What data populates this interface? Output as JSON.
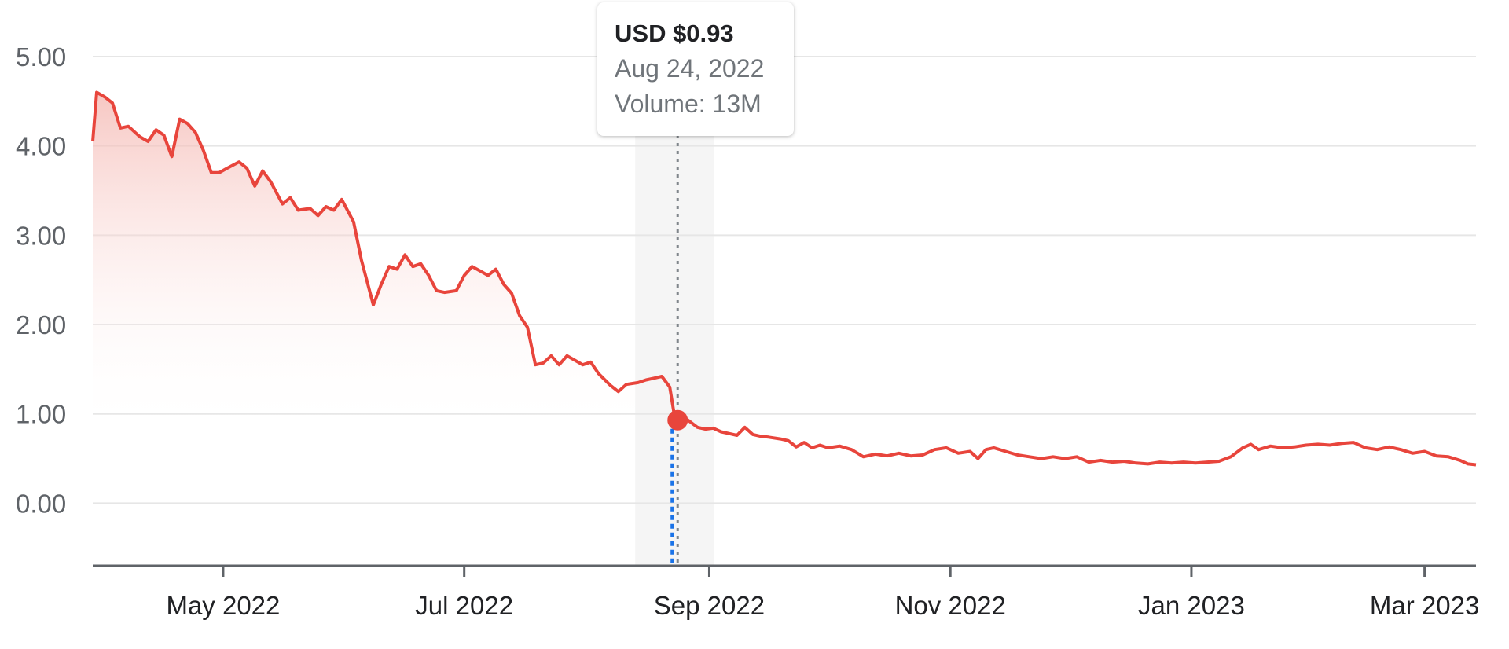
{
  "tooltip": {
    "price": "USD $0.93",
    "date": "Aug 24, 2022",
    "volume_label": "Volume:",
    "volume_value": "13M"
  },
  "colors": {
    "line": "#e8453c",
    "fill_top": "#f4b4ae",
    "grid": "#e6e6e6",
    "axis": "#5f6368",
    "highlight_band": "#f5f5f5",
    "hover_line": "#80868b",
    "volume_marker": "#1a73e8"
  },
  "chart_data": {
    "type": "area",
    "y_ticks": [
      "5.00",
      "4.00",
      "3.00",
      "2.00",
      "1.00",
      "0.00"
    ],
    "x_ticks": [
      "May 2022",
      "Jul 2022",
      "Sep 2022",
      "Nov 2022",
      "Jan 2023",
      "Mar 2023"
    ],
    "ylim": [
      -0.7,
      5.0
    ],
    "xlim": [
      "2022-03-29",
      "2023-03-14"
    ],
    "grid": true,
    "highlight": {
      "date": "2022-08-24",
      "value": 0.93
    },
    "series": [
      {
        "points": [
          [
            "2022-03-29",
            4.05
          ],
          [
            "2022-03-30",
            4.6
          ],
          [
            "2022-04-01",
            4.55
          ],
          [
            "2022-04-03",
            4.48
          ],
          [
            "2022-04-05",
            4.2
          ],
          [
            "2022-04-07",
            4.22
          ],
          [
            "2022-04-10",
            4.1
          ],
          [
            "2022-04-12",
            4.05
          ],
          [
            "2022-04-14",
            4.18
          ],
          [
            "2022-04-16",
            4.12
          ],
          [
            "2022-04-18",
            3.88
          ],
          [
            "2022-04-20",
            4.3
          ],
          [
            "2022-04-22",
            4.25
          ],
          [
            "2022-04-24",
            4.15
          ],
          [
            "2022-04-26",
            3.95
          ],
          [
            "2022-04-28",
            3.7
          ],
          [
            "2022-04-30",
            3.7
          ],
          [
            "2022-05-02",
            3.75
          ],
          [
            "2022-05-05",
            3.82
          ],
          [
            "2022-05-07",
            3.75
          ],
          [
            "2022-05-09",
            3.55
          ],
          [
            "2022-05-11",
            3.72
          ],
          [
            "2022-05-13",
            3.6
          ],
          [
            "2022-05-16",
            3.35
          ],
          [
            "2022-05-18",
            3.42
          ],
          [
            "2022-05-20",
            3.28
          ],
          [
            "2022-05-23",
            3.3
          ],
          [
            "2022-05-25",
            3.22
          ],
          [
            "2022-05-27",
            3.32
          ],
          [
            "2022-05-29",
            3.28
          ],
          [
            "2022-05-31",
            3.4
          ],
          [
            "2022-06-03",
            3.15
          ],
          [
            "2022-06-05",
            2.72
          ],
          [
            "2022-06-08",
            2.22
          ],
          [
            "2022-06-10",
            2.45
          ],
          [
            "2022-06-12",
            2.65
          ],
          [
            "2022-06-14",
            2.62
          ],
          [
            "2022-06-16",
            2.78
          ],
          [
            "2022-06-18",
            2.65
          ],
          [
            "2022-06-20",
            2.68
          ],
          [
            "2022-06-22",
            2.55
          ],
          [
            "2022-06-24",
            2.38
          ],
          [
            "2022-06-26",
            2.36
          ],
          [
            "2022-06-29",
            2.38
          ],
          [
            "2022-07-01",
            2.55
          ],
          [
            "2022-07-03",
            2.65
          ],
          [
            "2022-07-05",
            2.6
          ],
          [
            "2022-07-07",
            2.55
          ],
          [
            "2022-07-09",
            2.62
          ],
          [
            "2022-07-11",
            2.45
          ],
          [
            "2022-07-13",
            2.35
          ],
          [
            "2022-07-15",
            2.1
          ],
          [
            "2022-07-17",
            1.97
          ],
          [
            "2022-07-19",
            1.55
          ],
          [
            "2022-07-21",
            1.57
          ],
          [
            "2022-07-23",
            1.65
          ],
          [
            "2022-07-25",
            1.55
          ],
          [
            "2022-07-27",
            1.65
          ],
          [
            "2022-07-29",
            1.6
          ],
          [
            "2022-07-31",
            1.55
          ],
          [
            "2022-08-02",
            1.58
          ],
          [
            "2022-08-04",
            1.45
          ],
          [
            "2022-08-07",
            1.32
          ],
          [
            "2022-08-09",
            1.25
          ],
          [
            "2022-08-11",
            1.33
          ],
          [
            "2022-08-14",
            1.35
          ],
          [
            "2022-08-16",
            1.38
          ],
          [
            "2022-08-18",
            1.4
          ],
          [
            "2022-08-20",
            1.42
          ],
          [
            "2022-08-22",
            1.3
          ],
          [
            "2022-08-23",
            1.03
          ],
          [
            "2022-08-24",
            0.93
          ],
          [
            "2022-08-26",
            0.95
          ],
          [
            "2022-08-29",
            0.85
          ],
          [
            "2022-08-31",
            0.83
          ],
          [
            "2022-09-02",
            0.84
          ],
          [
            "2022-09-04",
            0.8
          ],
          [
            "2022-09-06",
            0.78
          ],
          [
            "2022-09-08",
            0.76
          ],
          [
            "2022-09-10",
            0.85
          ],
          [
            "2022-09-12",
            0.77
          ],
          [
            "2022-09-14",
            0.75
          ],
          [
            "2022-09-16",
            0.74
          ],
          [
            "2022-09-19",
            0.72
          ],
          [
            "2022-09-21",
            0.7
          ],
          [
            "2022-09-23",
            0.63
          ],
          [
            "2022-09-25",
            0.68
          ],
          [
            "2022-09-27",
            0.62
          ],
          [
            "2022-09-29",
            0.65
          ],
          [
            "2022-10-01",
            0.62
          ],
          [
            "2022-10-04",
            0.64
          ],
          [
            "2022-10-07",
            0.6
          ],
          [
            "2022-10-10",
            0.52
          ],
          [
            "2022-10-13",
            0.55
          ],
          [
            "2022-10-16",
            0.53
          ],
          [
            "2022-10-19",
            0.56
          ],
          [
            "2022-10-22",
            0.53
          ],
          [
            "2022-10-25",
            0.54
          ],
          [
            "2022-10-28",
            0.6
          ],
          [
            "2022-10-31",
            0.62
          ],
          [
            "2022-11-03",
            0.56
          ],
          [
            "2022-11-06",
            0.58
          ],
          [
            "2022-11-08",
            0.5
          ],
          [
            "2022-11-10",
            0.6
          ],
          [
            "2022-11-12",
            0.62
          ],
          [
            "2022-11-15",
            0.58
          ],
          [
            "2022-11-18",
            0.54
          ],
          [
            "2022-11-21",
            0.52
          ],
          [
            "2022-11-24",
            0.5
          ],
          [
            "2022-11-27",
            0.52
          ],
          [
            "2022-11-30",
            0.5
          ],
          [
            "2022-12-03",
            0.52
          ],
          [
            "2022-12-06",
            0.46
          ],
          [
            "2022-12-09",
            0.48
          ],
          [
            "2022-12-12",
            0.46
          ],
          [
            "2022-12-15",
            0.47
          ],
          [
            "2022-12-18",
            0.45
          ],
          [
            "2022-12-21",
            0.44
          ],
          [
            "2022-12-24",
            0.46
          ],
          [
            "2022-12-27",
            0.45
          ],
          [
            "2022-12-30",
            0.46
          ],
          [
            "2023-01-02",
            0.45
          ],
          [
            "2023-01-05",
            0.46
          ],
          [
            "2023-01-08",
            0.47
          ],
          [
            "2023-01-11",
            0.52
          ],
          [
            "2023-01-14",
            0.62
          ],
          [
            "2023-01-16",
            0.66
          ],
          [
            "2023-01-18",
            0.6
          ],
          [
            "2023-01-21",
            0.64
          ],
          [
            "2023-01-24",
            0.62
          ],
          [
            "2023-01-27",
            0.63
          ],
          [
            "2023-01-30",
            0.65
          ],
          [
            "2023-02-02",
            0.66
          ],
          [
            "2023-02-05",
            0.65
          ],
          [
            "2023-02-08",
            0.67
          ],
          [
            "2023-02-11",
            0.68
          ],
          [
            "2023-02-14",
            0.62
          ],
          [
            "2023-02-17",
            0.6
          ],
          [
            "2023-02-20",
            0.63
          ],
          [
            "2023-02-23",
            0.6
          ],
          [
            "2023-02-26",
            0.56
          ],
          [
            "2023-03-01",
            0.58
          ],
          [
            "2023-03-04",
            0.53
          ],
          [
            "2023-03-07",
            0.52
          ],
          [
            "2023-03-10",
            0.48
          ],
          [
            "2023-03-12",
            0.44
          ],
          [
            "2023-03-14",
            0.43
          ]
        ]
      }
    ]
  }
}
